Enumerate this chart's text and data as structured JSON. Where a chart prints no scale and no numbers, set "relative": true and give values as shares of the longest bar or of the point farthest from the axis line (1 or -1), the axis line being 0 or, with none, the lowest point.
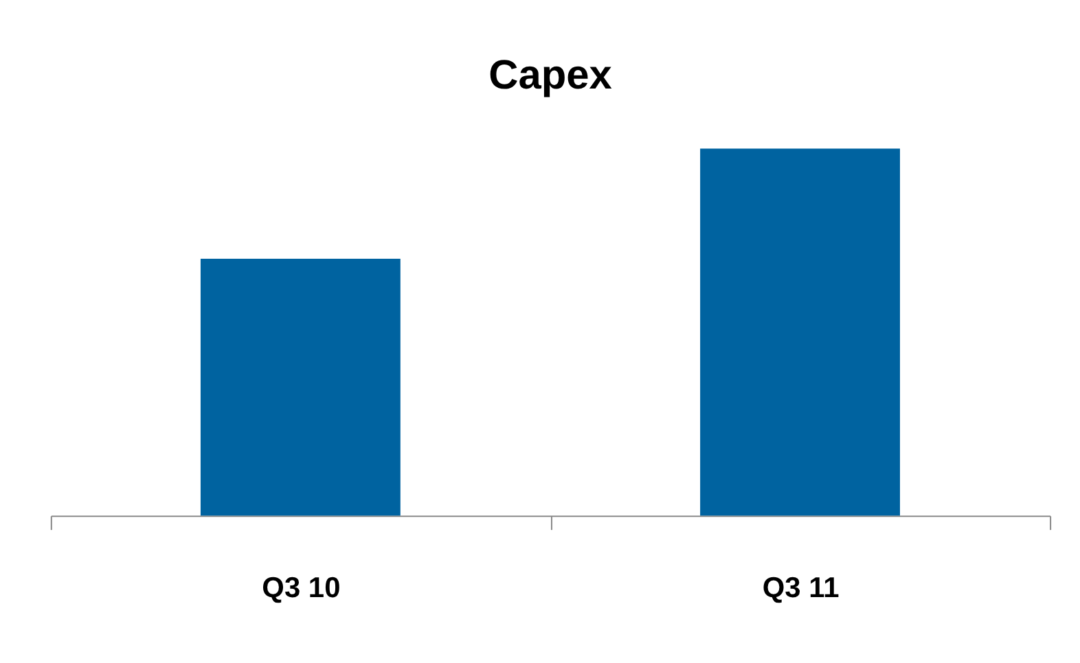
{
  "chart_data": {
    "type": "bar",
    "title": "Capex",
    "relative": true,
    "categories": [
      "Q3 10",
      "Q3 11"
    ],
    "series": [
      {
        "color": "#0063a0",
        "values": [
          0.7,
          1
        ]
      }
    ],
    "grid": false,
    "legend": false
  }
}
